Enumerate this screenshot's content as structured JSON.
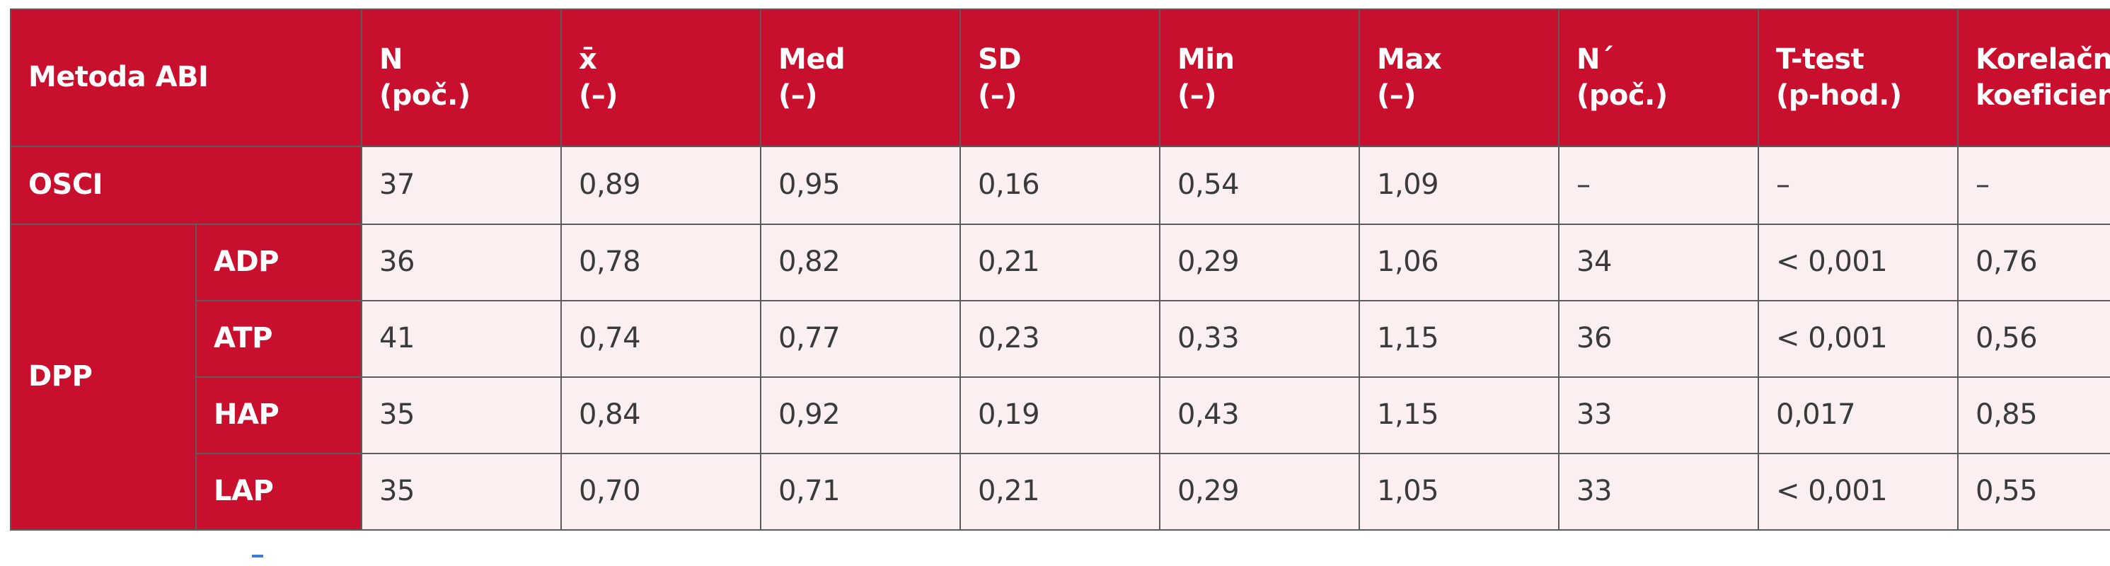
{
  "table": {
    "header": {
      "method": "Metoda ABI",
      "cols": [
        {
          "l1": "N",
          "l2": "(poč.)"
        },
        {
          "l1": "x̄",
          "l2": "(–)"
        },
        {
          "l1": "Med",
          "l2": "(–)"
        },
        {
          "l1": "SD",
          "l2": "(–)"
        },
        {
          "l1": "Min",
          "l2": "(–)"
        },
        {
          "l1": "Max",
          "l2": "(–)"
        },
        {
          "l1": "N´",
          "l2": "(poč.)"
        },
        {
          "l1": "T-test",
          "l2": "(p-hod.)"
        },
        {
          "l1": "Korelační",
          "l2": "koeficient r"
        }
      ]
    },
    "osci": {
      "label": "OSCI",
      "values": [
        "37",
        "0,89",
        "0,95",
        "0,16",
        "0,54",
        "1,09",
        "–",
        "–",
        "–"
      ]
    },
    "dpp": {
      "label": "DPP",
      "rows": [
        {
          "label": "ADP",
          "values": [
            "36",
            "0,78",
            "0,82",
            "0,21",
            "0,29",
            "1,06",
            "34",
            "< 0,001",
            "0,76"
          ]
        },
        {
          "label": "ATP",
          "values": [
            "41",
            "0,74",
            "0,77",
            "0,23",
            "0,33",
            "1,15",
            "36",
            "< 0,001",
            "0,56"
          ]
        },
        {
          "label": "HAP",
          "values": [
            "35",
            "0,84",
            "0,92",
            "0,19",
            "0,43",
            "1,15",
            "33",
            "0,017",
            "0,85"
          ]
        },
        {
          "label": "LAP",
          "values": [
            "35",
            "0,70",
            "0,71",
            "0,21",
            "0,29",
            "1,05",
            "33",
            "< 0,001",
            "0,55"
          ]
        }
      ]
    }
  },
  "colors": {
    "header_bg": "#c8102e",
    "cell_bg": "#fcefef",
    "border": "#5c5c5c"
  }
}
